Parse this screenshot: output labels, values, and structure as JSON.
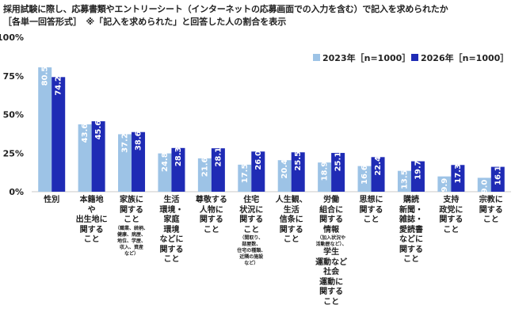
{
  "header": {
    "title": "採用試験に際し、応募書類やエントリーシート（インターネットの応募画面での入力を含む）で記入を求められたか",
    "note": "［各単一回答形式］　※「記入を求められた」と回答した人の割合を表示"
  },
  "chart_data": {
    "type": "bar",
    "ylim": [
      0,
      100
    ],
    "yticks": [
      "0%",
      "25%",
      "50%",
      "75%",
      "100%"
    ],
    "legend_position": "top-right",
    "categories": [
      {
        "lines": [
          "性別"
        ]
      },
      {
        "lines": [
          "本籍地",
          "や",
          "出生地に",
          "関する",
          "こと"
        ]
      },
      {
        "lines": [
          "家族に",
          "関する",
          "こと"
        ],
        "sub": [
          "（職業、続柄、",
          "健康、病歴、",
          "地位、学歴、",
          "収入、資産",
          "など）"
        ]
      },
      {
        "lines": [
          "生活",
          "環境・",
          "家庭",
          "環境",
          "などに",
          "関する",
          "こと"
        ]
      },
      {
        "lines": [
          "尊敬する",
          "人物に",
          "関する",
          "こと"
        ]
      },
      {
        "lines": [
          "住宅",
          "状況に",
          "関する",
          "こと"
        ],
        "sub": [
          "（間取り、",
          "部屋数、",
          "住宅の種類、",
          "近隣の施設",
          "など）"
        ]
      },
      {
        "lines": [
          "人生観、",
          "生活",
          "信条に",
          "関する",
          "こと"
        ]
      },
      {
        "lines": [
          "労働",
          "組合に",
          "関する",
          "情報"
        ],
        "sub": [
          "（加入状況や",
          "活動歴など）、"
        ],
        "tail": [
          "学生",
          "運動など",
          "社会",
          "運動に",
          "関する",
          "こと"
        ]
      },
      {
        "lines": [
          "思想に",
          "関する",
          "こと"
        ]
      },
      {
        "lines": [
          "購読",
          "新聞・",
          "雑誌・",
          "愛読書",
          "などに",
          "関する",
          "こと"
        ]
      },
      {
        "lines": [
          "支持",
          "政党に",
          "関する",
          "こと"
        ]
      },
      {
        "lines": [
          "宗教に",
          "関する",
          "こと"
        ]
      }
    ],
    "series": [
      {
        "name": "2023年［n=1000］",
        "color": "#9dc3e6",
        "values": [
          80.5,
          43.6,
          37.2,
          24.8,
          21.6,
          17.5,
          20.4,
          18.9,
          16.6,
          13.5,
          9.9,
          9.0
        ]
      },
      {
        "name": "2026年［n=1000］",
        "color": "#1f2bb5",
        "values": [
          74.2,
          45.6,
          38.6,
          28.3,
          28.1,
          26.0,
          25.5,
          25.1,
          22.4,
          19.7,
          17.3,
          16.1
        ]
      }
    ],
    "value_labels": [
      [
        "80.5",
        "43.6",
        "37.2",
        "24.8",
        "21.6",
        "17.5",
        "20.4",
        "18.9",
        "16.6",
        "13.5",
        "9.9",
        "9.0"
      ],
      [
        "74.2",
        "45.6",
        "38.6",
        "28.3",
        "28.1",
        "26.0",
        "25.5",
        "25.1",
        "22.4",
        "19.7",
        "17.3",
        "16.1"
      ]
    ]
  }
}
